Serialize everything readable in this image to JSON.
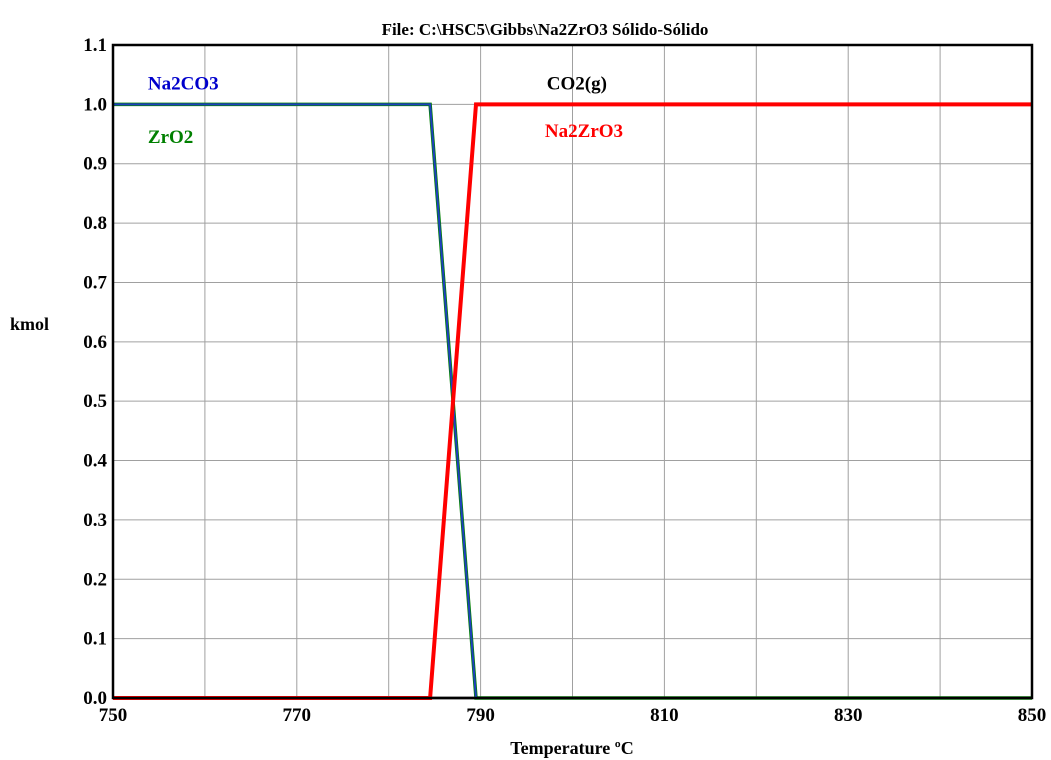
{
  "chart_data": {
    "type": "line",
    "title": "File: C:\\HSC5\\Gibbs\\Na2ZrO3 Sólido-Sólido",
    "xlabel": "Temperature ºC",
    "ylabel": "kmol",
    "xlim": [
      750,
      850
    ],
    "ylim": [
      0,
      1.1
    ],
    "grid": true,
    "x_ticks": [
      {
        "value": 750,
        "label": "750"
      },
      {
        "value": 770,
        "label": "770"
      },
      {
        "value": 790,
        "label": "790"
      },
      {
        "value": 810,
        "label": "810"
      },
      {
        "value": 830,
        "label": "830"
      },
      {
        "value": 850,
        "label": "850"
      }
    ],
    "x_grid": [
      750,
      760,
      770,
      780,
      790,
      800,
      810,
      820,
      830,
      840,
      850
    ],
    "y_ticks": [
      {
        "value": 0.0,
        "label": "0.0"
      },
      {
        "value": 0.1,
        "label": "0.1"
      },
      {
        "value": 0.2,
        "label": "0.2"
      },
      {
        "value": 0.3,
        "label": "0.3"
      },
      {
        "value": 0.4,
        "label": "0.4"
      },
      {
        "value": 0.5,
        "label": "0.5"
      },
      {
        "value": 0.6,
        "label": "0.6"
      },
      {
        "value": 0.7,
        "label": "0.7"
      },
      {
        "value": 0.8,
        "label": "0.8"
      },
      {
        "value": 0.9,
        "label": "0.9"
      },
      {
        "value": 1.0,
        "label": "1.0"
      },
      {
        "value": 1.1,
        "label": "1.1"
      }
    ],
    "series": [
      {
        "name": "CO2(g)",
        "color": "#000000",
        "width": 2.5,
        "x": [
          750,
          784.5,
          789.5,
          850
        ],
        "y": [
          0,
          0,
          0,
          0
        ]
      },
      {
        "name": "ZrO2",
        "color": "#008000",
        "width": 3.5,
        "x": [
          750,
          784.5,
          789.5,
          850
        ],
        "y": [
          1.0,
          1.0,
          0,
          0
        ]
      },
      {
        "name": "Na2CO3",
        "color": "#1f3fbf",
        "width": 2,
        "x": [
          750,
          784.5,
          789.5,
          850
        ],
        "y": [
          1.0,
          1.0,
          0,
          0
        ]
      },
      {
        "name": "Na2ZrO3",
        "color": "#ff0000",
        "width": 4,
        "x": [
          750,
          784.5,
          789.5,
          850
        ],
        "y": [
          0,
          0,
          1.0,
          1.0
        ]
      }
    ],
    "series_labels": [
      {
        "text": "Na2CO3",
        "color": "#0000cc",
        "x": 753.8,
        "y": 1.035
      },
      {
        "text": "ZrO2",
        "color": "#008000",
        "x": 753.8,
        "y": 0.945
      },
      {
        "text": "CO2(g)",
        "color": "#000000",
        "x": 797.2,
        "y": 1.035
      },
      {
        "text": "Na2ZrO3",
        "color": "#ff0000",
        "x": 797.0,
        "y": 0.955
      }
    ]
  }
}
